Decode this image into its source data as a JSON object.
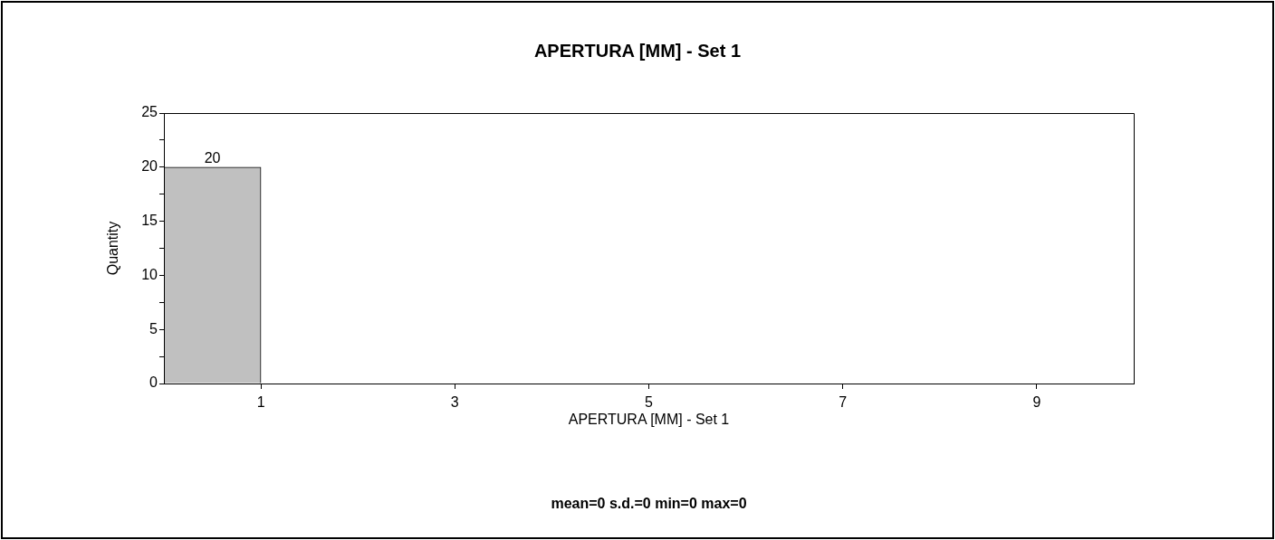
{
  "chart_data": {
    "type": "histogram",
    "title": "APERTURA [MM] - Set 1",
    "xlabel": "APERTURA [MM] - Set 1",
    "ylabel": "Quantity",
    "bins": [
      0,
      1
    ],
    "values": [
      20
    ],
    "color": "#c0c0c0",
    "data_labels": true,
    "xlim": [
      0,
      10
    ],
    "xticks": [
      1,
      3,
      5,
      7,
      9
    ],
    "ylim": [
      0,
      25
    ],
    "yticks": [
      0,
      {
        "value": 2.5,
        "label": null
      },
      5,
      {
        "value": 7.5,
        "label": null
      },
      10,
      {
        "value": 12.5,
        "label": null
      },
      15,
      {
        "value": 17.5,
        "label": null
      },
      20,
      {
        "value": 22.5,
        "label": null
      },
      25
    ],
    "grid": false,
    "legend": false,
    "annotations": [
      "mean=0 s.d.=0 min=0 max=0"
    ]
  }
}
